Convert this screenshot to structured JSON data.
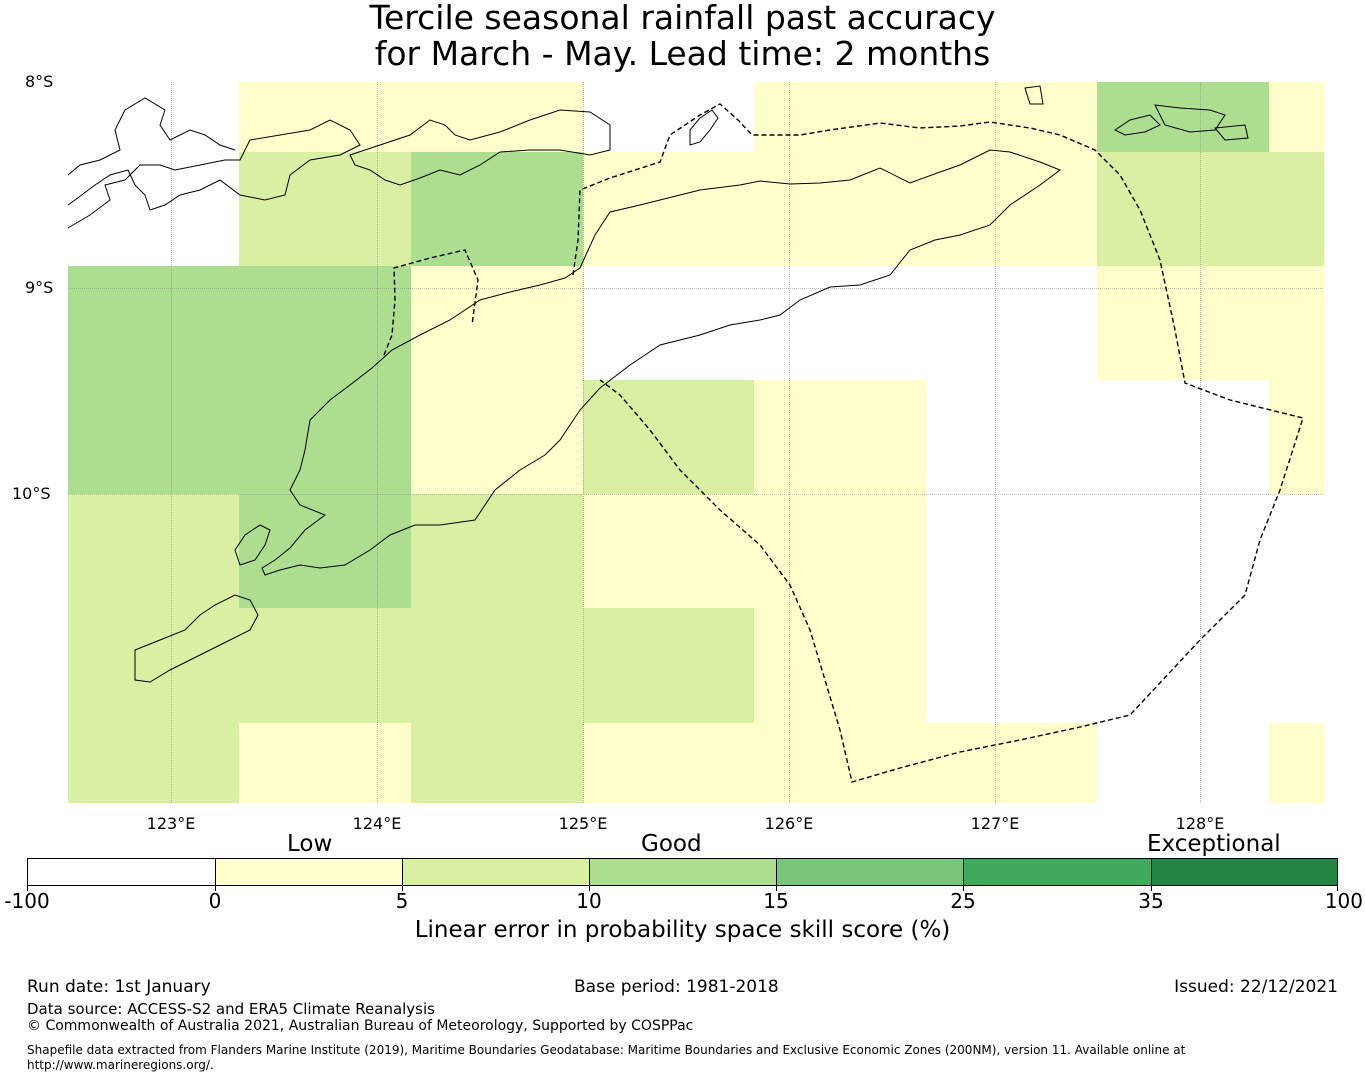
{
  "title": {
    "line1": "Tercile seasonal rainfall past accuracy",
    "line2": "for March - May. Lead time: 2 months"
  },
  "map": {
    "latitude_labels": [
      "8°S",
      "9°S",
      "10°S"
    ],
    "longitude_labels": [
      "123°E",
      "124°E",
      "125°E",
      "126°E",
      "127°E",
      "128°E"
    ],
    "skill_grid_description": "gridded skill score cells over Timor and surrounding waters",
    "boundary_style": "dashed maritime boundary"
  },
  "legend": {
    "categories": [
      "Low",
      "Good",
      "Exceptional"
    ],
    "ticks": [
      "-100",
      "0",
      "5",
      "10",
      "15",
      "25",
      "35",
      "100"
    ],
    "colors": [
      "#ffffff",
      "#ffffcc",
      "#d9f0a3",
      "#addd8e",
      "#78c679",
      "#41ab5d",
      "#238443"
    ],
    "label": "Linear error in probability space skill score (%)"
  },
  "footer": {
    "run_date": "Run date: 1st January",
    "base_period": "Base period: 1981-2018",
    "issued": "Issued: 22/12/2021",
    "data_source": "Data source: ACCESS-S2 and ERA5 Climate Reanalysis",
    "copyright": "© Commonwealth of Australia 2021, Australian Bureau of Meteorology, Supported by COSPPac",
    "shapefile": "Shapefile data extracted from Flanders Marine Institute (2019), Maritime Boundaries Geodatabase: Maritime Boundaries and Exclusive Economic Zones (200NM), version 11. Available online at http://www.marineregions.org/."
  }
}
